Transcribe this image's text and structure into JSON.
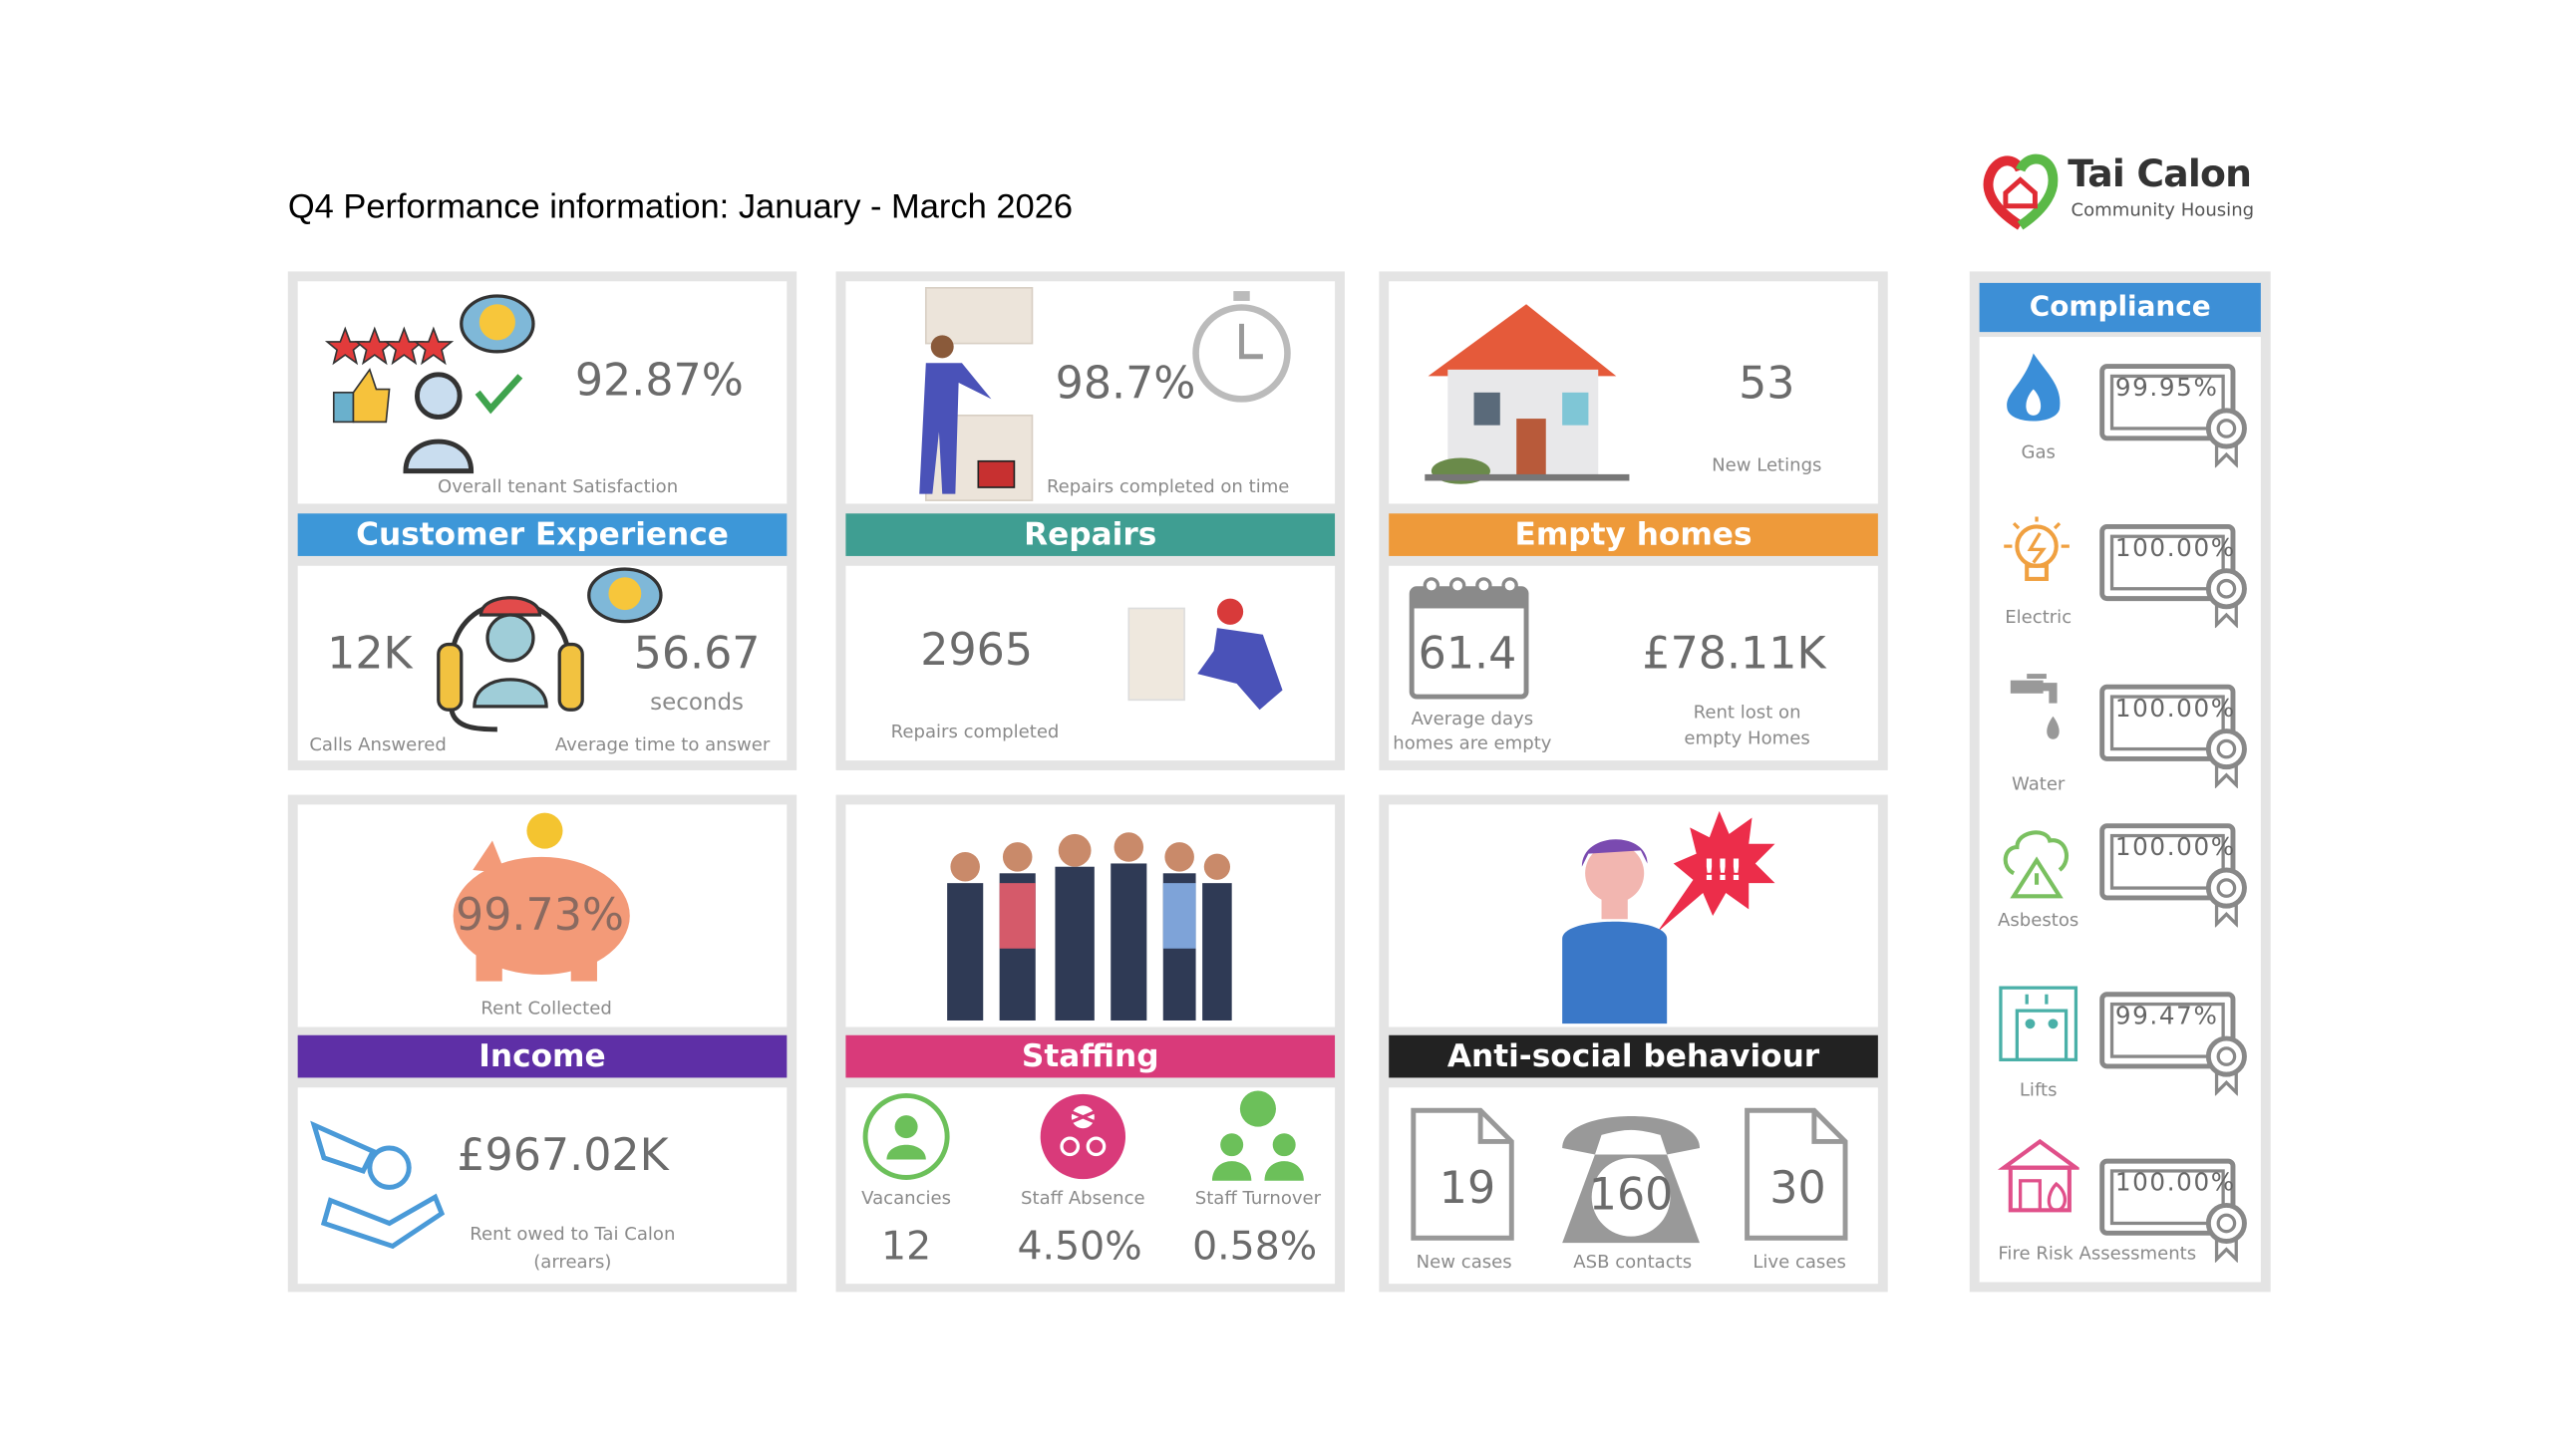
{
  "title": "Q4 Performance information: January - March 2026",
  "logo": {
    "name": "Tai Calon",
    "tagline": "Community Housing"
  },
  "colors": {
    "customer": "#3d97d8",
    "repairs": "#3f9e92",
    "empty": "#ee9a3a",
    "income": "#5e2fa6",
    "staffing": "#d93a7a",
    "asb": "#222222",
    "compliance": "#3d8fd6"
  },
  "customer_experience": {
    "heading": "Customer Experience",
    "satisfaction_value": "92.87%",
    "satisfaction_label": "Overall  tenant Satisfaction",
    "calls_value": "12K",
    "calls_label": "Calls Answered",
    "answer_time_value": "56.67",
    "answer_time_unit": "seconds",
    "answer_time_label": "Average time to answer"
  },
  "repairs": {
    "heading": "Repairs",
    "on_time_value": "98.7%",
    "on_time_label": "Repairs completed on time",
    "completed_value": "2965",
    "completed_label": "Repairs completed"
  },
  "empty_homes": {
    "heading": "Empty homes",
    "lettings_value": "53",
    "lettings_label": "New Letings",
    "days_value": "61.4",
    "days_label_1": "Average days",
    "days_label_2": "homes are empty",
    "rent_lost_value": "£78.11K",
    "rent_lost_label_1": "Rent lost on",
    "rent_lost_label_2": "empty Homes"
  },
  "income": {
    "heading": "Income",
    "collected_value": "99.73%",
    "collected_label": "Rent Collected",
    "arrears_value": "£967.02K",
    "arrears_label_1": "Rent owed to Tai Calon",
    "arrears_label_2": "(arrears)"
  },
  "staffing": {
    "heading": "Staffing",
    "items": [
      {
        "label": "Vacancies",
        "value": "12"
      },
      {
        "label": "Staff Absence",
        "value": "4.50%"
      },
      {
        "label": "Staff Turnover",
        "value": "0.58%"
      }
    ]
  },
  "asb": {
    "heading": "Anti-social behaviour",
    "items": [
      {
        "label": "New cases",
        "value": "19"
      },
      {
        "label": "ASB contacts",
        "value": "160"
      },
      {
        "label": "Live cases",
        "value": "30"
      }
    ]
  },
  "compliance": {
    "heading": "Compliance",
    "items": [
      {
        "label": "Gas",
        "value": "99.95%",
        "icon": "flame-icon"
      },
      {
        "label": "Electric",
        "value": "100.00%",
        "icon": "lightbulb-icon"
      },
      {
        "label": "Water",
        "value": "100.00%",
        "icon": "tap-icon"
      },
      {
        "label": "Asbestos",
        "value": "100.00%",
        "icon": "tree-warning-icon"
      },
      {
        "label": "Lifts",
        "value": "99.47%",
        "icon": "lift-icon"
      },
      {
        "label": "Fire Risk Assessments",
        "value": "100.00%",
        "icon": "house-fire-icon"
      }
    ]
  }
}
